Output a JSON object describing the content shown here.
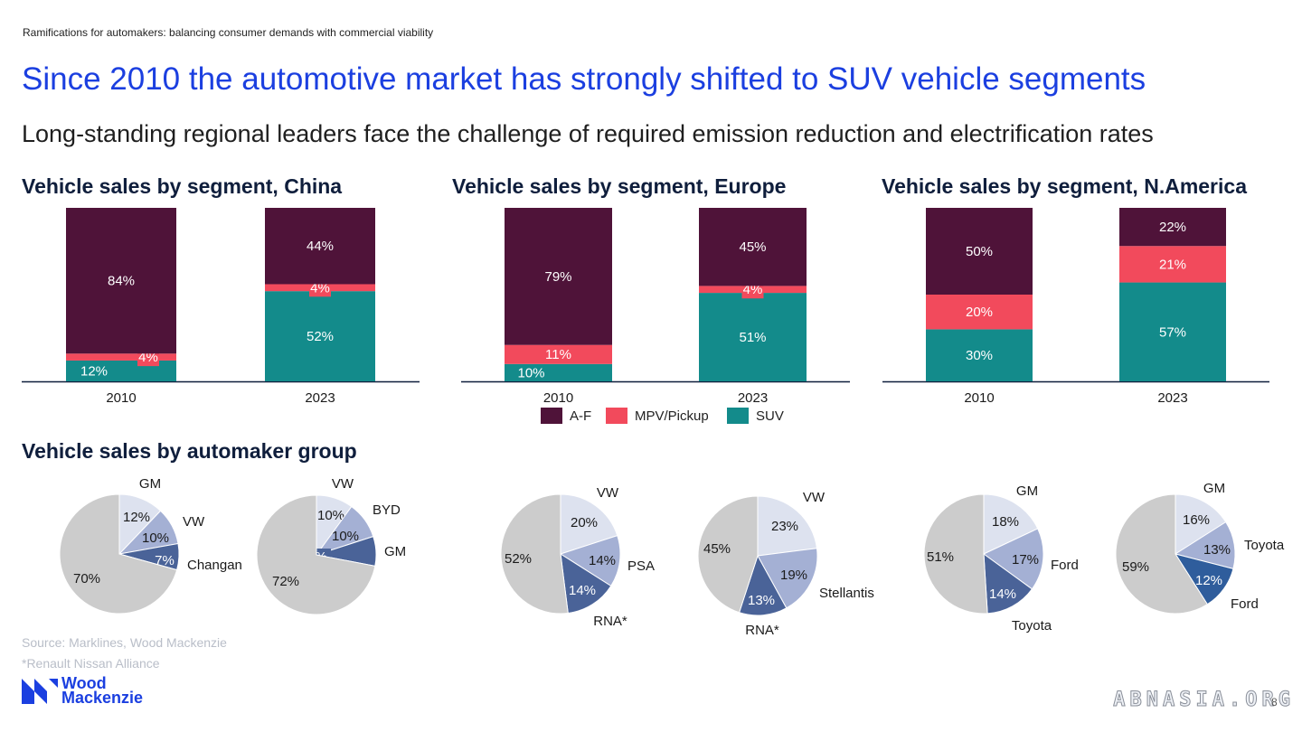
{
  "header": {
    "kicker": "Ramifications for automakers: balancing consumer demands with commercial viability",
    "title": "Since 2010 the automotive market has strongly shifted to SUV vehicle segments",
    "subtitle": "Long-standing regional leaders face the challenge of required emission reduction and electrification rates"
  },
  "section_title": "Vehicle sales by automaker group",
  "legend": [
    {
      "label": "A-F",
      "color": "#4f1339"
    },
    {
      "label": "MPV/Pickup",
      "color": "#f24a5c"
    },
    {
      "label": "SUV",
      "color": "#138b8b"
    }
  ],
  "footer": {
    "source": "Source: Marklines, Wood Mackenzie",
    "note": "*Renault Nissan Alliance",
    "logo_line1": "Wood",
    "logo_line2": "Mackenzie",
    "page": "8",
    "watermark": "ABNASIA.ORG"
  },
  "colors": {
    "af": "#4f1339",
    "mpv": "#f24a5c",
    "suv": "#138b8b",
    "pie_other": "#cccccc",
    "pie_1": "#dde2ef",
    "pie_2": "#a4b0d4",
    "pie_3": "#4a6398",
    "pie_4": "#2f5d9c"
  },
  "chart_data": [
    {
      "type": "bar",
      "stacked": true,
      "title": "Vehicle sales by segment, China",
      "categories": [
        "2010",
        "2023"
      ],
      "series": [
        {
          "name": "SUV",
          "values": [
            12,
            52
          ],
          "labels": [
            "12%",
            "52%"
          ]
        },
        {
          "name": "MPV/Pickup",
          "values": [
            4,
            4
          ],
          "labels": [
            "4%",
            "4%"
          ]
        },
        {
          "name": "A-F",
          "values": [
            84,
            44
          ],
          "labels": [
            "84%",
            "44%"
          ]
        }
      ],
      "ylim": [
        0,
        100
      ]
    },
    {
      "type": "bar",
      "stacked": true,
      "title": "Vehicle sales by segment, Europe",
      "categories": [
        "2010",
        "2023"
      ],
      "series": [
        {
          "name": "SUV",
          "values": [
            10,
            51
          ],
          "labels": [
            "10%",
            "51%"
          ]
        },
        {
          "name": "MPV/Pickup",
          "values": [
            11,
            4
          ],
          "labels": [
            "11%",
            "4%"
          ]
        },
        {
          "name": "A-F",
          "values": [
            79,
            45
          ],
          "labels": [
            "79%",
            "45%"
          ]
        }
      ],
      "ylim": [
        0,
        100
      ]
    },
    {
      "type": "bar",
      "stacked": true,
      "title": "Vehicle sales by segment, N.America",
      "categories": [
        "2010",
        "2023"
      ],
      "series": [
        {
          "name": "SUV",
          "values": [
            30,
            57
          ],
          "labels": [
            "30%",
            "57%"
          ]
        },
        {
          "name": "MPV/Pickup",
          "values": [
            20,
            21
          ],
          "labels": [
            "20%",
            "21%"
          ]
        },
        {
          "name": "A-F",
          "values": [
            50,
            22
          ],
          "labels": [
            "50%",
            "22%"
          ]
        }
      ],
      "ylim": [
        0,
        100
      ]
    },
    {
      "type": "pie",
      "region": "China",
      "year": "2010",
      "slices": [
        {
          "name": "GM",
          "value": 12,
          "label": "12%",
          "color_key": "pie_1"
        },
        {
          "name": "VW",
          "value": 10,
          "label": "10%",
          "color_key": "pie_2"
        },
        {
          "name": "Changan",
          "value": 7,
          "label": "7%",
          "color_key": "pie_3"
        },
        {
          "name": "",
          "value": 70,
          "label": "70%",
          "color_key": "pie_other"
        }
      ]
    },
    {
      "type": "pie",
      "region": "China",
      "year": "2023",
      "slices": [
        {
          "name": "VW",
          "value": 10,
          "label": "10%",
          "color_key": "pie_1"
        },
        {
          "name": "BYD",
          "value": 10,
          "label": "10%",
          "color_key": "pie_2"
        },
        {
          "name": "GM",
          "value": 8,
          "label": "8%",
          "color_key": "pie_3"
        },
        {
          "name": "",
          "value": 72,
          "label": "72%",
          "color_key": "pie_other"
        }
      ]
    },
    {
      "type": "pie",
      "region": "Europe",
      "year": "2010",
      "slices": [
        {
          "name": "VW",
          "value": 20,
          "label": "20%",
          "color_key": "pie_1"
        },
        {
          "name": "PSA",
          "value": 14,
          "label": "14%",
          "color_key": "pie_2"
        },
        {
          "name": "RNA*",
          "value": 14,
          "label": "14%",
          "color_key": "pie_3"
        },
        {
          "name": "",
          "value": 52,
          "label": "52%",
          "color_key": "pie_other"
        }
      ]
    },
    {
      "type": "pie",
      "region": "Europe",
      "year": "2023",
      "slices": [
        {
          "name": "VW",
          "value": 23,
          "label": "23%",
          "color_key": "pie_1"
        },
        {
          "name": "Stellantis",
          "value": 19,
          "label": "19%",
          "color_key": "pie_2"
        },
        {
          "name": "RNA*",
          "value": 13,
          "label": "13%",
          "color_key": "pie_3"
        },
        {
          "name": "",
          "value": 45,
          "label": "45%",
          "color_key": "pie_other"
        }
      ]
    },
    {
      "type": "pie",
      "region": "N.America",
      "year": "2010",
      "slices": [
        {
          "name": "GM",
          "value": 18,
          "label": "18%",
          "color_key": "pie_1"
        },
        {
          "name": "Ford",
          "value": 17,
          "label": "17%",
          "color_key": "pie_2"
        },
        {
          "name": "Toyota",
          "value": 14,
          "label": "14%",
          "color_key": "pie_3"
        },
        {
          "name": "",
          "value": 51,
          "label": "51%",
          "color_key": "pie_other"
        }
      ]
    },
    {
      "type": "pie",
      "region": "N.America",
      "year": "2023",
      "slices": [
        {
          "name": "GM",
          "value": 16,
          "label": "16%",
          "color_key": "pie_1"
        },
        {
          "name": "Toyota",
          "value": 13,
          "label": "13%",
          "color_key": "pie_2"
        },
        {
          "name": "Ford",
          "value": 12,
          "label": "12%",
          "color_key": "pie_4"
        },
        {
          "name": "",
          "value": 59,
          "label": "59%",
          "color_key": "pie_other"
        }
      ]
    }
  ]
}
